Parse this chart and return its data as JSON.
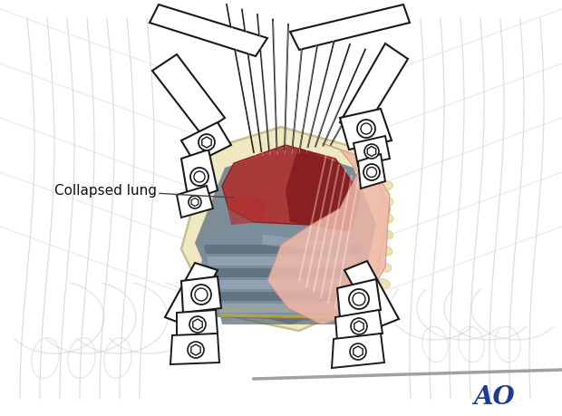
{
  "bg_color": "#ffffff",
  "body_outline_color": "#c0c0c0",
  "instrument_color": "#1a1a1a",
  "instrument_fill": "#ffffff",
  "lung_red": "#b03030",
  "lung_dark_red": "#7a1515",
  "tissue_pink": "#f0b8a8",
  "tissue_cream": "#f0e8c0",
  "tissue_cream2": "#e8dca0",
  "spine_blue_gray": "#7a8fa0",
  "spine_stripe_dark": "#5a6878",
  "spine_stripe_light": "#9aaabb",
  "spine_gold": "#c8a838",
  "wound_border": "#c8c090",
  "annotation_text": "Collapsed lung",
  "annotation_color": "#111111",
  "ao_text": "AO",
  "ao_color": "#1a3a9a",
  "ao_fontsize": 20,
  "figsize": [
    6.2,
    4.59
  ],
  "dpi": 100,
  "gray_line_color": "#a0a0a0",
  "retractor_wire_color": "#1a1a1a",
  "background_line_color": "#d0d0d0"
}
